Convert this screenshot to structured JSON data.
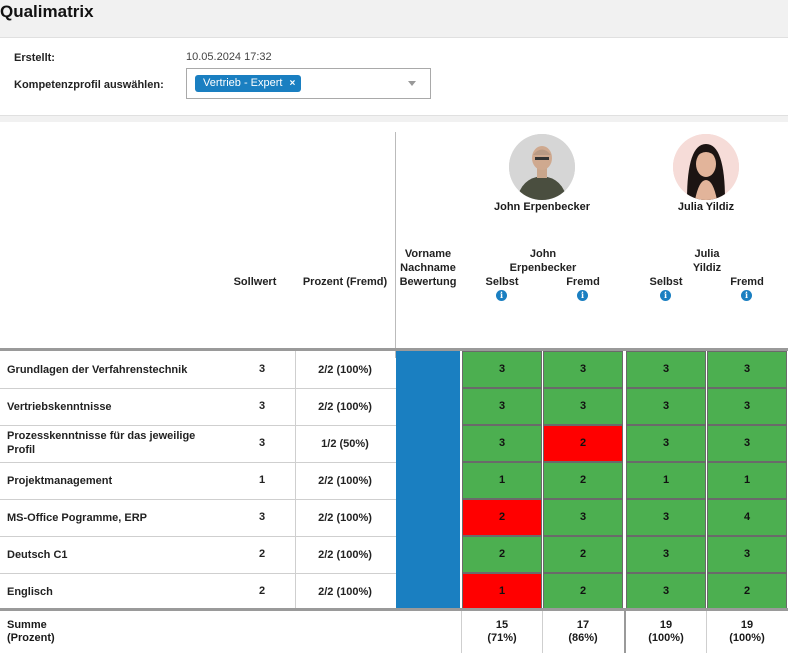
{
  "title": "Qualimatrix",
  "filter": {
    "created_label": "Erstellt:",
    "created_value": "10.05.2024 17:32",
    "profile_label": "Kompetenzprofil auswählen:",
    "profile_tag": "Vertrieb - Expert",
    "tag_remove": "×"
  },
  "people": [
    {
      "name": "John Erpenbecker",
      "name_line1": "John",
      "name_line2": "Erpenbecker"
    },
    {
      "name": "Julia Yildiz",
      "name_line1": "Julia",
      "name_line2": "Yildiz"
    }
  ],
  "headers": {
    "sollwert": "Sollwert",
    "prozent": "Prozent (Fremd)",
    "bewertung_1": "Vorname",
    "bewertung_2": "Nachname",
    "bewertung_3": "Bewertung",
    "selbst": "Selbst",
    "fremd": "Fremd",
    "info_glyph": "i"
  },
  "rows": [
    {
      "label": "Grundlagen der Verfahrenstechnik",
      "label2": "",
      "soll": "3",
      "prozent": "2/2 (100%)",
      "vals": [
        "3",
        "3",
        "3",
        "3"
      ],
      "colors": [
        "green",
        "green",
        "green",
        "green"
      ]
    },
    {
      "label": "Vertriebskenntnisse",
      "label2": "",
      "soll": "3",
      "prozent": "2/2 (100%)",
      "vals": [
        "3",
        "3",
        "3",
        "3"
      ],
      "colors": [
        "green",
        "green",
        "green",
        "green"
      ]
    },
    {
      "label": "Prozesskenntnisse für das jeweilige",
      "label2": "Profil",
      "soll": "3",
      "prozent": "1/2 (50%)",
      "vals": [
        "3",
        "2",
        "3",
        "3"
      ],
      "colors": [
        "green",
        "red",
        "green",
        "green"
      ]
    },
    {
      "label": "Projektmanagement",
      "label2": "",
      "soll": "1",
      "prozent": "2/2 (100%)",
      "vals": [
        "1",
        "2",
        "1",
        "1"
      ],
      "colors": [
        "green",
        "green",
        "green",
        "green"
      ]
    },
    {
      "label": "MS-Office Pogramme, ERP",
      "label2": "",
      "soll": "3",
      "prozent": "2/2 (100%)",
      "vals": [
        "2",
        "3",
        "3",
        "4"
      ],
      "colors": [
        "red",
        "green",
        "green",
        "green"
      ]
    },
    {
      "label": "Deutsch C1",
      "label2": "",
      "soll": "2",
      "prozent": "2/2 (100%)",
      "vals": [
        "2",
        "2",
        "3",
        "3"
      ],
      "colors": [
        "green",
        "green",
        "green",
        "green"
      ]
    },
    {
      "label": "Englisch",
      "label2": "",
      "soll": "2",
      "prozent": "2/2 (100%)",
      "vals": [
        "1",
        "2",
        "3",
        "2"
      ],
      "colors": [
        "red",
        "green",
        "green",
        "green"
      ]
    }
  ],
  "sum": {
    "label_1": "Summe",
    "label_2": "(Prozent)",
    "vals": [
      "15",
      "17",
      "19",
      "19"
    ],
    "pcts": [
      "(71%)",
      "(86%)",
      "(100%)",
      "(100%)"
    ]
  },
  "colors": {
    "accent": "#1a7fc1",
    "good": "#4caf50",
    "bad": "#ff0000"
  }
}
